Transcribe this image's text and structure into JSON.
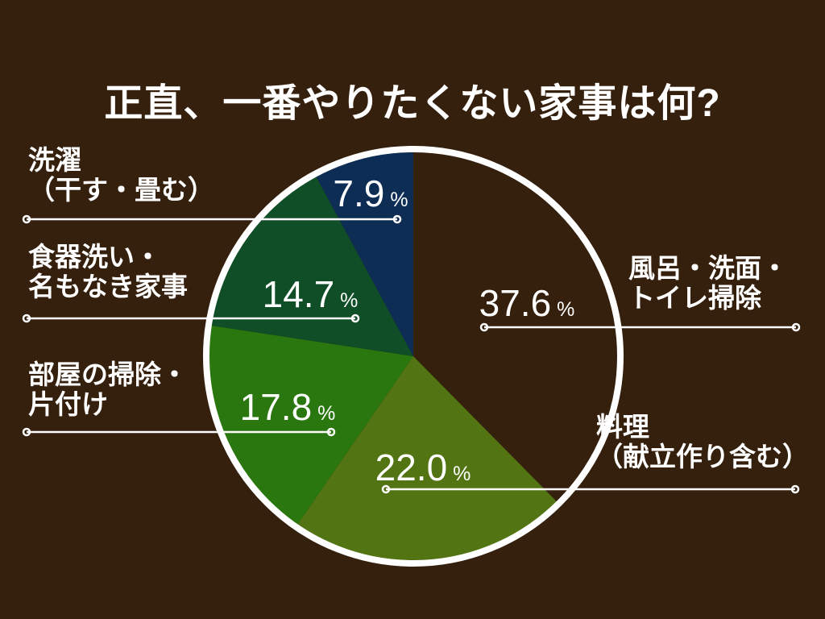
{
  "title": "正直、一番やりたくない家事は何?",
  "percent_suffix": "%",
  "background_color": "#351F0D",
  "text_color": "#FFFFFF",
  "outline_color": "#FFFFFF",
  "chart_data": {
    "type": "pie",
    "title": "正直、一番やりたくない家事は何?",
    "units": "%",
    "start_angle_deg": 0,
    "direction": "clockwise",
    "total": 100.0,
    "slices": [
      {
        "label": "風呂・洗面・トイレ掃除",
        "value": 37.6,
        "display": "37.6",
        "color": "#351F0D"
      },
      {
        "label": "料理（献立作り含む）",
        "value": 22.0,
        "display": "22.0",
        "color": "#527412"
      },
      {
        "label": "部屋の掃除・片付け",
        "value": 17.8,
        "display": "17.8",
        "color": "#2B770F"
      },
      {
        "label": "食器洗い・名もなき家事",
        "value": 14.7,
        "display": "14.7",
        "color": "#0F4E27"
      },
      {
        "label": "洗濯（干す・畳む）",
        "value": 7.9,
        "display": "7.9",
        "color": "#0D2D55"
      }
    ]
  },
  "callouts": {
    "bath": {
      "line1": "風呂・洗面・",
      "line2": "トイレ掃除"
    },
    "cooking": {
      "line1": "料理",
      "line2": "（献立作り含む）"
    },
    "rooms": {
      "line1": "部屋の掃除・",
      "line2": "片付け"
    },
    "dishes": {
      "line1": "食器洗い・",
      "line2": "名もなき家事"
    },
    "laundry": {
      "line1": "洗濯",
      "line2": "（干す・畳む）"
    }
  }
}
